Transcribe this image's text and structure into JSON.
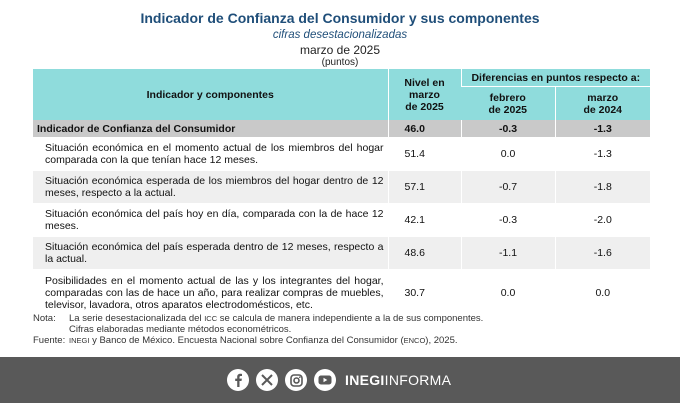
{
  "header": {
    "title": "Indicador de Confianza del Consumidor y sus componentes",
    "subtitle": "cifras desestacionalizadas",
    "date": "marzo de 2025",
    "units": "(puntos)"
  },
  "table": {
    "col_indicator": "Indicador y componentes",
    "col_level_line1": "Nivel en",
    "col_level_line2": "marzo",
    "col_level_line3": "de 2025",
    "col_diff": "Diferencias en puntos respecto a:",
    "col_feb_line1": "febrero",
    "col_feb_line2": "de 2025",
    "col_mar_line1": "marzo",
    "col_mar_line2": "de 2024",
    "summary": {
      "label": "Indicador de Confianza del Consumidor",
      "level": "46.0",
      "feb": "-0.3",
      "mar": "-1.3"
    },
    "rows": [
      {
        "label": "Situación económica en el momento actual de los miembros del hogar comparada con la que tenían hace 12 meses.",
        "level": "51.4",
        "feb": "0.0",
        "mar": "-1.3"
      },
      {
        "label": "Situación económica esperada de los miembros del hogar dentro de 12 meses, respecto a la actual.",
        "level": "57.1",
        "feb": "-0.7",
        "mar": "-1.8"
      },
      {
        "label": "Situación económica del país hoy en día, comparada con la de hace 12 meses.",
        "level": "42.1",
        "feb": "-0.3",
        "mar": "-2.0"
      },
      {
        "label": "Situación económica del país esperada dentro de 12 meses, respecto a la actual.",
        "level": "48.6",
        "feb": "-1.1",
        "mar": "-1.6"
      },
      {
        "label": "Posibilidades en el momento actual de las y los integrantes del hogar, comparadas con las de hace un año, para realizar compras de muebles, televisor, lavadora, otros aparatos electrodomésticos, etc.",
        "level": "30.7",
        "feb": "0.0",
        "mar": "0.0"
      }
    ]
  },
  "notes": {
    "note_label": "Nota:",
    "note_line1_a": "La serie desestacionalizada del",
    "note_line1_abbr": "icc",
    "note_line1_b": "se calcula de manera independiente a la de sus componentes.",
    "note_line2": "Cifras elaboradas mediante métodos econométricos.",
    "source_label": "Fuente:",
    "source_abbr1": "inegi",
    "source_text_a": "y Banco de México. Encuesta Nacional sobre Confianza del Consumidor (",
    "source_abbr2": "enco",
    "source_text_b": "), 2025."
  },
  "footer": {
    "brand_bold": "INEGI",
    "brand_light": "INFORMA",
    "icons": [
      "facebook-icon",
      "x-icon",
      "instagram-icon",
      "youtube-icon"
    ]
  }
}
